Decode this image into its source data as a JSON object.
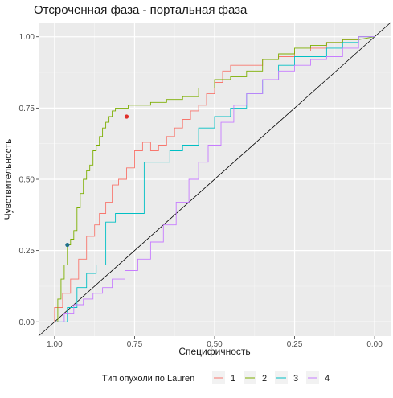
{
  "chart_data": {
    "type": "line",
    "title": "Отсроченная фаза - портальная фаза",
    "xlabel": "Специфичность",
    "ylabel": "Чувствительность",
    "x_reversed": true,
    "xlim": [
      1.05,
      -0.05
    ],
    "ylim": [
      -0.05,
      1.05
    ],
    "x_ticks": [
      1.0,
      0.75,
      0.5,
      0.25,
      0.0
    ],
    "x_tick_labels": [
      "1.00",
      "0.75",
      "0.50",
      "0.25",
      "0.00"
    ],
    "y_ticks": [
      0.0,
      0.25,
      0.5,
      0.75,
      1.0
    ],
    "y_tick_labels": [
      "0.00",
      "0.25",
      "0.50",
      "0.75",
      "1.00"
    ],
    "grid": true,
    "reference_line": {
      "from": [
        1.05,
        -0.05
      ],
      "to": [
        -0.05,
        1.05
      ]
    },
    "legend": {
      "title": "Тип опухоли по Lauren",
      "position": "bottom"
    },
    "series": [
      {
        "name": "1",
        "color": "#F8766D",
        "marker": {
          "x": 0.775,
          "y": 0.72
        },
        "x": [
          1.0,
          1.0,
          0.975,
          0.975,
          0.95,
          0.95,
          0.925,
          0.925,
          0.9,
          0.9,
          0.875,
          0.875,
          0.86,
          0.86,
          0.84,
          0.84,
          0.82,
          0.82,
          0.8,
          0.8,
          0.775,
          0.775,
          0.75,
          0.75,
          0.725,
          0.725,
          0.7,
          0.7,
          0.675,
          0.675,
          0.65,
          0.65,
          0.625,
          0.625,
          0.6,
          0.6,
          0.575,
          0.575,
          0.55,
          0.55,
          0.525,
          0.525,
          0.5,
          0.5,
          0.475,
          0.475,
          0.45,
          0.45,
          0.4,
          0.4,
          0.35,
          0.35,
          0.3,
          0.3,
          0.25,
          0.25,
          0.2,
          0.2,
          0.15,
          0.15,
          0.1,
          0.1,
          0.05,
          0.05,
          0.0
        ],
        "y": [
          0.0,
          0.05,
          0.05,
          0.1,
          0.1,
          0.15,
          0.15,
          0.22,
          0.22,
          0.3,
          0.3,
          0.34,
          0.34,
          0.38,
          0.38,
          0.42,
          0.42,
          0.48,
          0.48,
          0.5,
          0.5,
          0.54,
          0.54,
          0.6,
          0.6,
          0.63,
          0.63,
          0.6,
          0.6,
          0.62,
          0.62,
          0.65,
          0.65,
          0.68,
          0.68,
          0.71,
          0.71,
          0.74,
          0.74,
          0.76,
          0.76,
          0.8,
          0.8,
          0.84,
          0.84,
          0.88,
          0.88,
          0.9,
          0.9,
          0.9,
          0.9,
          0.92,
          0.92,
          0.93,
          0.93,
          0.95,
          0.95,
          0.96,
          0.96,
          0.98,
          0.98,
          0.99,
          0.99,
          1.0,
          1.0
        ]
      },
      {
        "name": "2",
        "color": "#7CAE00",
        "marker": {
          "x": 0.96,
          "y": 0.27
        },
        "x": [
          1.0,
          0.99,
          0.99,
          0.98,
          0.98,
          0.97,
          0.97,
          0.96,
          0.96,
          0.95,
          0.95,
          0.94,
          0.94,
          0.93,
          0.93,
          0.92,
          0.92,
          0.91,
          0.91,
          0.9,
          0.9,
          0.89,
          0.89,
          0.88,
          0.88,
          0.87,
          0.87,
          0.86,
          0.86,
          0.85,
          0.85,
          0.84,
          0.84,
          0.83,
          0.83,
          0.82,
          0.82,
          0.81,
          0.81,
          0.8,
          0.8,
          0.77,
          0.77,
          0.74,
          0.74,
          0.7,
          0.7,
          0.65,
          0.65,
          0.6,
          0.6,
          0.55,
          0.55,
          0.5,
          0.5,
          0.45,
          0.45,
          0.4,
          0.4,
          0.35,
          0.35,
          0.3,
          0.3,
          0.25,
          0.25,
          0.2,
          0.2,
          0.15,
          0.15,
          0.1,
          0.1,
          0.05,
          0.05,
          0.0
        ],
        "y": [
          0.0,
          0.0,
          0.08,
          0.08,
          0.15,
          0.15,
          0.2,
          0.2,
          0.27,
          0.27,
          0.29,
          0.29,
          0.32,
          0.32,
          0.4,
          0.4,
          0.45,
          0.45,
          0.5,
          0.5,
          0.53,
          0.53,
          0.55,
          0.55,
          0.6,
          0.6,
          0.62,
          0.62,
          0.65,
          0.65,
          0.68,
          0.68,
          0.7,
          0.7,
          0.72,
          0.72,
          0.74,
          0.74,
          0.75,
          0.75,
          0.75,
          0.75,
          0.76,
          0.76,
          0.76,
          0.76,
          0.77,
          0.77,
          0.78,
          0.78,
          0.79,
          0.79,
          0.82,
          0.82,
          0.85,
          0.85,
          0.86,
          0.86,
          0.88,
          0.88,
          0.92,
          0.92,
          0.94,
          0.94,
          0.96,
          0.96,
          0.97,
          0.97,
          0.98,
          0.98,
          0.99,
          0.99,
          0.99,
          1.0
        ]
      },
      {
        "name": "3",
        "color": "#00BFC4",
        "x": [
          1.0,
          0.96,
          0.96,
          0.93,
          0.93,
          0.9,
          0.9,
          0.87,
          0.87,
          0.84,
          0.84,
          0.81,
          0.81,
          0.78,
          0.78,
          0.75,
          0.75,
          0.72,
          0.72,
          0.68,
          0.68,
          0.64,
          0.64,
          0.6,
          0.6,
          0.55,
          0.55,
          0.5,
          0.5,
          0.45,
          0.45,
          0.4,
          0.4,
          0.35,
          0.35,
          0.3,
          0.3,
          0.25,
          0.25,
          0.2,
          0.2,
          0.15,
          0.15,
          0.1,
          0.1,
          0.05,
          0.05,
          0.0
        ],
        "y": [
          0.0,
          0.0,
          0.05,
          0.05,
          0.12,
          0.12,
          0.17,
          0.17,
          0.2,
          0.2,
          0.35,
          0.35,
          0.38,
          0.38,
          0.38,
          0.38,
          0.38,
          0.38,
          0.56,
          0.56,
          0.56,
          0.56,
          0.6,
          0.6,
          0.62,
          0.62,
          0.68,
          0.68,
          0.72,
          0.72,
          0.75,
          0.75,
          0.8,
          0.8,
          0.85,
          0.85,
          0.9,
          0.9,
          0.93,
          0.93,
          0.93,
          0.93,
          0.96,
          0.96,
          0.98,
          0.98,
          1.0,
          1.0
        ]
      },
      {
        "name": "4",
        "color": "#C77CFF",
        "x": [
          1.0,
          0.97,
          0.97,
          0.94,
          0.94,
          0.91,
          0.91,
          0.88,
          0.88,
          0.85,
          0.85,
          0.82,
          0.82,
          0.78,
          0.78,
          0.74,
          0.74,
          0.7,
          0.7,
          0.66,
          0.66,
          0.62,
          0.62,
          0.58,
          0.58,
          0.55,
          0.55,
          0.52,
          0.52,
          0.48,
          0.48,
          0.44,
          0.44,
          0.4,
          0.4,
          0.35,
          0.35,
          0.3,
          0.3,
          0.25,
          0.25,
          0.2,
          0.2,
          0.15,
          0.15,
          0.1,
          0.1,
          0.05,
          0.05,
          0.0
        ],
        "y": [
          0.0,
          0.0,
          0.03,
          0.03,
          0.06,
          0.06,
          0.08,
          0.08,
          0.1,
          0.1,
          0.12,
          0.12,
          0.15,
          0.15,
          0.18,
          0.18,
          0.22,
          0.22,
          0.28,
          0.28,
          0.34,
          0.34,
          0.42,
          0.42,
          0.5,
          0.5,
          0.56,
          0.56,
          0.62,
          0.62,
          0.7,
          0.7,
          0.76,
          0.76,
          0.8,
          0.8,
          0.85,
          0.85,
          0.88,
          0.88,
          0.9,
          0.9,
          0.92,
          0.92,
          0.93,
          0.93,
          0.96,
          0.96,
          1.0,
          1.0
        ]
      }
    ]
  }
}
